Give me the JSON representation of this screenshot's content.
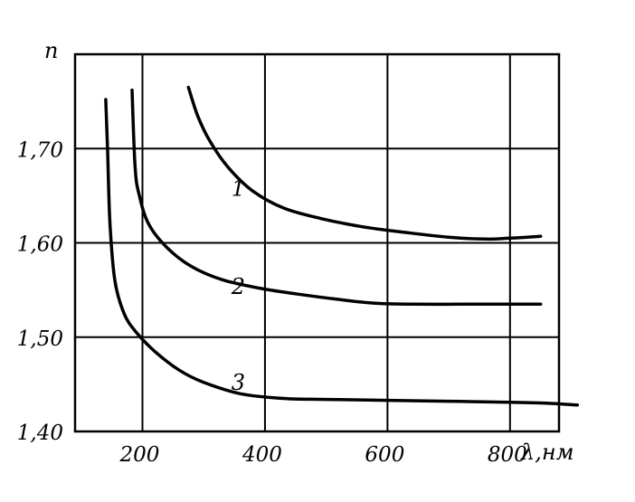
{
  "chart_data": {
    "type": "line",
    "title": "",
    "xlabel": "λ,нм",
    "ylabel": "n",
    "xlim": [
      90,
      880
    ],
    "ylim": [
      1.4,
      1.8
    ],
    "x_ticks": [
      200,
      400,
      600,
      800
    ],
    "x_tick_labels": [
      "200",
      "400",
      "600",
      "800"
    ],
    "y_ticks": [
      1.4,
      1.5,
      1.6,
      1.7
    ],
    "y_tick_labels": [
      "1,40",
      "1,50",
      "1,60",
      "1,70"
    ],
    "grid": true,
    "series": [
      {
        "name": "1",
        "x": [
          275,
          290,
          310,
          340,
          380,
          430,
          490,
          560,
          630,
          700,
          760,
          800,
          850
        ],
        "y": [
          1.765,
          1.735,
          1.708,
          1.68,
          1.655,
          1.637,
          1.626,
          1.617,
          1.611,
          1.606,
          1.604,
          1.605,
          1.607
        ]
      },
      {
        "name": "2",
        "x": [
          183,
          188,
          195,
          210,
          240,
          280,
          330,
          390,
          450,
          520,
          580,
          650,
          720,
          790,
          850
        ],
        "y": [
          1.762,
          1.68,
          1.65,
          1.62,
          1.595,
          1.575,
          1.561,
          1.552,
          1.546,
          1.54,
          1.536,
          1.535,
          1.535,
          1.535,
          1.535
        ]
      },
      {
        "name": "3",
        "x": [
          140,
          143,
          147,
          155,
          170,
          190,
          220,
          260,
          300,
          360,
          430,
          500,
          600,
          700,
          800,
          860,
          910
        ],
        "y": [
          1.752,
          1.7,
          1.62,
          1.56,
          1.525,
          1.505,
          1.485,
          1.465,
          1.452,
          1.44,
          1.435,
          1.434,
          1.433,
          1.432,
          1.431,
          1.43,
          1.428
        ]
      }
    ]
  }
}
